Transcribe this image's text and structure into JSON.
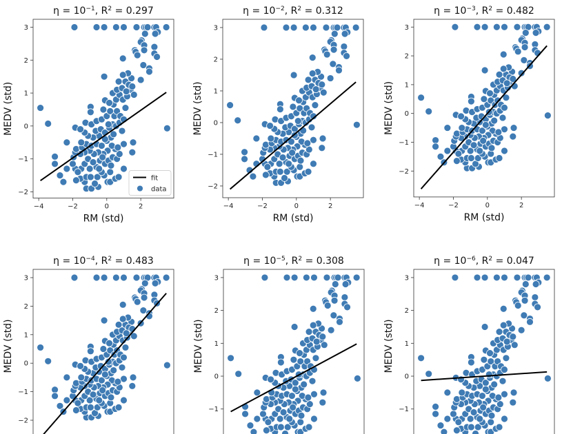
{
  "chart_data": [
    {
      "type": "scatter",
      "title": [
        {
          "t": "η = 10"
        },
        {
          "sup": "−1"
        },
        {
          "t": ", R"
        },
        {
          "sup": "2"
        },
        {
          "t": " = 0.297"
        }
      ],
      "xlabel": "RM (std)",
      "ylabel": "MEDV (std)",
      "xlim": [
        -4.33,
        3.94
      ],
      "ylim": [
        -2.19,
        3.24
      ],
      "xticks": [
        -4,
        -2,
        0,
        2
      ],
      "yticks": [
        -2,
        -1,
        0,
        1,
        2,
        3
      ],
      "fit": {
        "x": [
          -3.9,
          3.5
        ],
        "y": [
          -1.66,
          1.02
        ]
      },
      "legend": {
        "placement": "lower-right",
        "entries": [
          "fit",
          "data"
        ]
      }
    },
    {
      "type": "scatter",
      "title": [
        {
          "t": "η = 10"
        },
        {
          "sup": "−2"
        },
        {
          "t": ", R"
        },
        {
          "sup": "2"
        },
        {
          "t": " = 0.312"
        }
      ],
      "xlabel": "RM (std)",
      "ylabel": "MEDV (std)",
      "xlim": [
        -4.33,
        3.94
      ],
      "ylim": [
        -2.37,
        3.26
      ],
      "xticks": [
        -4,
        -2,
        0,
        2
      ],
      "yticks": [
        -2,
        -1,
        0,
        1,
        2,
        3
      ],
      "fit": {
        "x": [
          -3.9,
          3.5
        ],
        "y": [
          -2.1,
          1.28
        ]
      }
    },
    {
      "type": "scatter",
      "title": [
        {
          "t": "η = 10"
        },
        {
          "sup": "−3"
        },
        {
          "t": ", R"
        },
        {
          "sup": "2"
        },
        {
          "t": " = 0.482"
        }
      ],
      "xlabel": "RM (std)",
      "ylabel": "MEDV (std)",
      "xlim": [
        -4.33,
        3.94
      ],
      "ylim": [
        -2.9,
        3.27
      ],
      "xticks": [
        -4,
        -2,
        0,
        2
      ],
      "yticks": [
        -2,
        -1,
        0,
        1,
        2,
        3
      ],
      "fit": {
        "x": [
          -3.9,
          3.5
        ],
        "y": [
          -2.62,
          2.35
        ]
      }
    },
    {
      "type": "scatter",
      "title": [
        {
          "t": "η = 10"
        },
        {
          "sup": "−4"
        },
        {
          "t": ", R"
        },
        {
          "sup": "2"
        },
        {
          "t": " = 0.483"
        }
      ],
      "xlabel": "",
      "ylabel": "MEDV (std)",
      "xlim": [
        -4.33,
        3.94
      ],
      "ylim": [
        -2.85,
        3.29
      ],
      "xticks": [],
      "yticks": [
        -2,
        -1,
        0,
        1,
        2,
        3
      ],
      "fit": {
        "x": [
          -3.9,
          3.5
        ],
        "y": [
          -2.62,
          2.45
        ]
      }
    },
    {
      "type": "scatter",
      "title": [
        {
          "t": "η = 10"
        },
        {
          "sup": "−5"
        },
        {
          "t": ", R"
        },
        {
          "sup": "2"
        },
        {
          "t": " = 0.308"
        }
      ],
      "xlabel": "",
      "ylabel": "MEDV (std)",
      "xlim": [
        -4.33,
        3.94
      ],
      "ylim": [
        -2.3,
        3.25
      ],
      "xticks": [],
      "yticks": [
        -1,
        0,
        1,
        2,
        3
      ],
      "fit": {
        "x": [
          -3.9,
          3.5
        ],
        "y": [
          -1.08,
          0.98
        ]
      }
    },
    {
      "type": "scatter",
      "title": [
        {
          "t": "η = 10"
        },
        {
          "sup": "−6"
        },
        {
          "t": ", R"
        },
        {
          "sup": "2"
        },
        {
          "t": " = 0.047"
        }
      ],
      "xlabel": "",
      "ylabel": "MEDV (std)",
      "xlim": [
        -4.33,
        3.94
      ],
      "ylim": [
        -2.3,
        3.25
      ],
      "xticks": [],
      "yticks": [
        -1,
        0,
        1,
        2,
        3
      ],
      "fit": {
        "x": [
          -3.9,
          3.5
        ],
        "y": [
          -0.13,
          0.13
        ]
      }
    }
  ],
  "colors": {
    "data": "#3f7bb4",
    "fit": "#000000",
    "edge": "#ffffff"
  },
  "points": [
    [
      -1.9,
      3
    ],
    [
      -0.6,
      3
    ],
    [
      -0.15,
      3
    ],
    [
      0.55,
      3
    ],
    [
      1.0,
      3
    ],
    [
      1.75,
      3
    ],
    [
      2.2,
      3
    ],
    [
      2.3,
      3
    ],
    [
      2.4,
      3
    ],
    [
      2.8,
      3
    ],
    [
      2.9,
      3
    ],
    [
      3.5,
      3
    ],
    [
      -3.9,
      0.55
    ],
    [
      -3.45,
      0.07
    ],
    [
      3.55,
      -0.07
    ],
    [
      -3.05,
      -0.93
    ],
    [
      -3.05,
      -1.15
    ],
    [
      -2.75,
      -1.5
    ],
    [
      -2.55,
      -1.7
    ],
    [
      -2.35,
      -1.3
    ],
    [
      -2.35,
      -0.5
    ],
    [
      -1.85,
      -0.05
    ],
    [
      2.05,
      2.6
    ],
    [
      2.0,
      2.55
    ],
    [
      2.2,
      2.45
    ],
    [
      2.25,
      2.8
    ],
    [
      1.65,
      2.3
    ],
    [
      1.7,
      2.25
    ],
    [
      1.8,
      2.15
    ],
    [
      2.8,
      2.4
    ],
    [
      2.8,
      2.2
    ],
    [
      2.95,
      2.1
    ],
    [
      2.2,
      2.3
    ],
    [
      2.15,
      1.85
    ],
    [
      2.5,
      1.75
    ],
    [
      2.5,
      1.65
    ],
    [
      2.0,
      1.4
    ],
    [
      0.95,
      2.05
    ],
    [
      3.0,
      2.85
    ],
    [
      2.85,
      2.8
    ],
    [
      -0.15,
      1.5
    ],
    [
      -0.1,
      0.78
    ],
    [
      -0.95,
      0.58
    ],
    [
      -0.95,
      0.42
    ],
    [
      -1.2,
      -1.9
    ],
    [
      -0.9,
      -1.9
    ],
    [
      -0.5,
      -1.85
    ],
    [
      -0.7,
      -1.75
    ],
    [
      -1.3,
      -1.7
    ],
    [
      -1.55,
      -1.6
    ],
    [
      -1.8,
      -1.65
    ],
    [
      -1.2,
      -1.55
    ],
    [
      -0.95,
      -1.55
    ],
    [
      -0.55,
      -1.55
    ],
    [
      -0.15,
      -1.5
    ],
    [
      0.05,
      -1.7
    ],
    [
      0.2,
      -1.7
    ],
    [
      0.5,
      -1.6
    ],
    [
      0.7,
      -1.55
    ],
    [
      1.0,
      -1.3
    ],
    [
      0.2,
      -1.4
    ],
    [
      -0.3,
      -1.4
    ],
    [
      -1.5,
      -1.3
    ],
    [
      -1.0,
      -1.3
    ],
    [
      -0.6,
      -1.25
    ],
    [
      -1.85,
      -1.3
    ],
    [
      -2.0,
      -1.15
    ],
    [
      -1.95,
      -0.95
    ],
    [
      -1.7,
      -1.4
    ],
    [
      -1.3,
      -1.15
    ],
    [
      -1.1,
      -1.0
    ],
    [
      -0.8,
      -1.1
    ],
    [
      -0.4,
      -1.05
    ],
    [
      -0.1,
      -1.15
    ],
    [
      0.1,
      -1.05
    ],
    [
      0.35,
      -0.95
    ],
    [
      0.6,
      -1.0
    ],
    [
      0.75,
      -0.85
    ],
    [
      0.5,
      -0.7
    ],
    [
      0.3,
      -0.6
    ],
    [
      0.05,
      -0.75
    ],
    [
      -0.2,
      -0.85
    ],
    [
      -0.5,
      -0.8
    ],
    [
      -0.75,
      -0.85
    ],
    [
      -1.0,
      -0.75
    ],
    [
      -1.3,
      -0.8
    ],
    [
      -1.55,
      -0.85
    ],
    [
      -1.85,
      -0.8
    ],
    [
      -1.8,
      -0.7
    ],
    [
      -1.45,
      -0.65
    ],
    [
      -1.2,
      -0.55
    ],
    [
      -0.9,
      -0.6
    ],
    [
      -0.6,
      -0.55
    ],
    [
      -0.3,
      -0.6
    ],
    [
      0.0,
      -0.45
    ],
    [
      0.25,
      -0.35
    ],
    [
      -0.45,
      -0.3
    ],
    [
      -0.8,
      -0.35
    ],
    [
      -1.1,
      -0.3
    ],
    [
      -1.3,
      -0.2
    ],
    [
      -1.5,
      -0.5
    ],
    [
      -1.55,
      -0.1
    ],
    [
      -1.25,
      0.1
    ],
    [
      -0.9,
      0.05
    ],
    [
      -0.65,
      -0.15
    ],
    [
      -0.35,
      -0.1
    ],
    [
      -0.1,
      -0.2
    ],
    [
      0.15,
      -0.05
    ],
    [
      0.35,
      0.05
    ],
    [
      0.55,
      0.0
    ],
    [
      0.75,
      0.1
    ],
    [
      0.9,
      -0.15
    ],
    [
      -0.6,
      0.15
    ],
    [
      -0.3,
      0.2
    ],
    [
      0.0,
      0.3
    ],
    [
      0.2,
      0.45
    ],
    [
      0.45,
      0.3
    ],
    [
      0.6,
      0.45
    ],
    [
      0.8,
      0.3
    ],
    [
      1.0,
      0.2
    ],
    [
      1.1,
      0.55
    ],
    [
      0.4,
      0.65
    ],
    [
      0.15,
      0.7
    ],
    [
      -0.2,
      0.5
    ],
    [
      0.55,
      0.8
    ],
    [
      0.75,
      0.95
    ],
    [
      0.35,
      1.0
    ],
    [
      0.95,
      0.8
    ],
    [
      1.2,
      0.9
    ],
    [
      0.6,
      1.1
    ],
    [
      0.9,
      1.15
    ],
    [
      1.1,
      1.35
    ],
    [
      1.4,
      1.1
    ],
    [
      1.6,
      0.95
    ],
    [
      1.45,
      1.45
    ],
    [
      1.25,
      1.6
    ],
    [
      0.95,
      1.55
    ],
    [
      0.7,
      1.35
    ],
    [
      1.3,
      1.25
    ],
    [
      1.5,
      1.2
    ],
    [
      1.55,
      -0.5
    ],
    [
      1.5,
      -0.8
    ],
    [
      1.0,
      -0.55
    ],
    [
      0.1,
      0.05
    ],
    [
      -0.1,
      -0.4
    ],
    [
      0.4,
      -0.25
    ],
    [
      -0.25,
      -0.95
    ],
    [
      0.25,
      -1.2
    ],
    [
      -0.45,
      -1.3
    ],
    [
      0.65,
      -0.65
    ],
    [
      1.15,
      1.05
    ]
  ]
}
